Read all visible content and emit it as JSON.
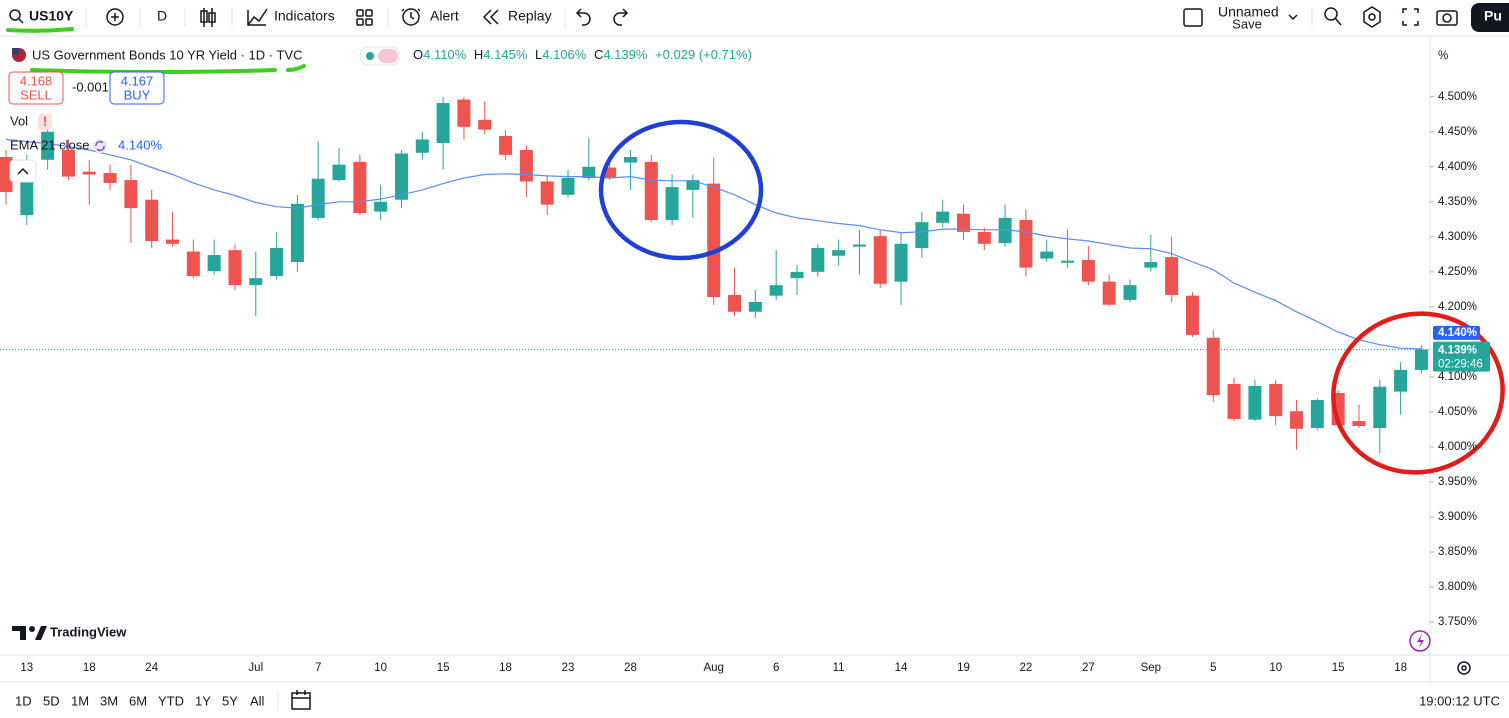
{
  "toolbar": {
    "symbol": "US10Y",
    "interval": "D",
    "indicators": "Indicators",
    "alert": "Alert",
    "replay": "Replay",
    "layout_name": "Unnamed",
    "save": "Save",
    "publish": "Pu"
  },
  "legend": {
    "title": "US Government Bonds 10 YR Yield · 1D · TVC",
    "ohlc": [
      {
        "label": "O",
        "value": "4.110%"
      },
      {
        "label": "H",
        "value": "4.145%"
      },
      {
        "label": "L",
        "value": "4.106%"
      },
      {
        "label": "C",
        "value": "4.139%"
      }
    ],
    "change": "+0.029 (+0.71%)",
    "sell_price": "4.168",
    "sell": "SELL",
    "spread": "-0.001",
    "buy_price": "4.167",
    "buy": "BUY",
    "vol": "Vol",
    "vol_warning": "!",
    "ema_name": "EMA 21 close",
    "ema_value": "4.140%"
  },
  "price_axis": {
    "unit": "%",
    "ema_badge": "4.140%",
    "close_badge": "4.139%",
    "countdown": "02:29:46"
  },
  "brand": "TradingView",
  "bottom_bar": {
    "ranges": [
      "1D",
      "5D",
      "1M",
      "3M",
      "6M",
      "YTD",
      "1Y",
      "5Y",
      "All"
    ],
    "clock": "19:00:12 UTC"
  },
  "chart_data": {
    "type": "candlestick",
    "categories": [
      null,
      "13",
      null,
      null,
      "18",
      null,
      null,
      "24",
      null,
      null,
      null,
      null,
      "Jul",
      null,
      null,
      "7",
      null,
      null,
      "10",
      null,
      null,
      "15",
      null,
      null,
      "18",
      null,
      null,
      "23",
      null,
      null,
      "28",
      null,
      null,
      null,
      "Aug",
      null,
      null,
      "6",
      null,
      null,
      "11",
      null,
      null,
      "14",
      null,
      null,
      "19",
      null,
      null,
      "22",
      null,
      null,
      "27",
      null,
      null,
      "Sep",
      null,
      null,
      "5",
      null,
      null,
      "10",
      null,
      null,
      "15",
      null,
      null,
      "18",
      null
    ],
    "open": [
      4.414,
      4.331,
      4.41,
      4.424,
      4.393,
      4.391,
      4.381,
      4.353,
      4.296,
      4.279,
      4.251,
      4.281,
      4.231,
      4.244,
      4.264,
      4.327,
      4.381,
      4.407,
      4.336,
      4.353,
      4.42,
      4.434,
      4.496,
      4.467,
      4.444,
      4.424,
      4.379,
      4.36,
      4.384,
      4.399,
      4.406,
      4.407,
      4.324,
      4.367,
      4.376,
      4.217,
      4.193,
      4.216,
      4.241,
      4.25,
      4.273,
      4.286,
      4.301,
      4.236,
      4.284,
      4.32,
      4.333,
      4.307,
      4.291,
      4.324,
      4.269,
      4.263,
      4.267,
      4.236,
      4.21,
      4.256,
      4.271,
      4.216,
      4.156,
      4.09,
      4.039,
      4.09,
      4.051,
      4.027,
      4.077,
      4.037,
      4.027,
      4.079,
      4.11
    ],
    "high": [
      4.424,
      4.417,
      4.474,
      4.439,
      4.41,
      4.403,
      4.403,
      4.367,
      4.336,
      4.296,
      4.296,
      4.289,
      4.279,
      4.307,
      4.36,
      4.436,
      4.427,
      4.417,
      4.374,
      4.424,
      4.45,
      4.5,
      4.5,
      4.493,
      4.453,
      4.431,
      4.387,
      4.396,
      4.441,
      4.407,
      4.424,
      4.417,
      4.389,
      4.389,
      4.413,
      4.256,
      4.224,
      4.281,
      4.26,
      4.29,
      4.296,
      4.31,
      4.31,
      4.307,
      4.336,
      4.353,
      4.346,
      4.313,
      4.346,
      4.339,
      4.296,
      4.31,
      4.287,
      4.246,
      4.239,
      4.303,
      4.3,
      4.221,
      4.167,
      4.099,
      4.096,
      4.096,
      4.067,
      4.07,
      4.081,
      4.06,
      4.096,
      4.121,
      4.145
    ],
    "low": [
      4.346,
      4.317,
      4.396,
      4.381,
      4.346,
      4.367,
      4.291,
      4.284,
      4.286,
      4.241,
      4.246,
      4.224,
      4.187,
      4.239,
      4.25,
      4.324,
      4.379,
      4.331,
      4.324,
      4.341,
      4.41,
      4.396,
      4.439,
      4.446,
      4.41,
      4.357,
      4.331,
      4.356,
      4.381,
      4.381,
      4.367,
      4.321,
      4.317,
      4.327,
      4.203,
      4.187,
      4.184,
      4.21,
      4.217,
      4.243,
      4.259,
      4.246,
      4.227,
      4.203,
      4.27,
      4.313,
      4.296,
      4.281,
      4.286,
      4.243,
      4.264,
      4.256,
      4.231,
      4.201,
      4.207,
      4.25,
      4.207,
      4.157,
      4.064,
      4.037,
      4.037,
      4.031,
      3.996,
      4.024,
      4.029,
      4.027,
      3.991,
      4.046,
      4.106
    ],
    "close": [
      4.364,
      4.41,
      4.45,
      4.386,
      4.389,
      4.377,
      4.341,
      4.294,
      4.29,
      4.244,
      4.274,
      4.231,
      4.241,
      4.284,
      4.347,
      4.383,
      4.403,
      4.334,
      4.35,
      4.419,
      4.439,
      4.491,
      4.457,
      4.453,
      4.417,
      4.379,
      4.346,
      4.384,
      4.4,
      4.384,
      4.414,
      4.324,
      4.371,
      4.381,
      4.214,
      4.193,
      4.207,
      4.231,
      4.25,
      4.284,
      4.281,
      4.289,
      4.233,
      4.29,
      4.321,
      4.336,
      4.307,
      4.29,
      4.327,
      4.256,
      4.279,
      4.266,
      4.236,
      4.203,
      4.231,
      4.264,
      4.217,
      4.16,
      4.074,
      4.04,
      4.087,
      4.044,
      4.026,
      4.067,
      4.031,
      4.03,
      4.086,
      4.11,
      4.139
    ],
    "up_color": "#26a69a",
    "down_color": "#ef5350",
    "lines": [
      {
        "name": "EMA 21 close",
        "color": "#5b8def",
        "values": [
          4.439,
          4.436,
          4.433,
          4.429,
          4.424,
          4.417,
          4.41,
          4.399,
          4.389,
          4.377,
          4.367,
          4.359,
          4.349,
          4.343,
          4.341,
          4.346,
          4.35,
          4.35,
          4.354,
          4.36,
          4.367,
          4.376,
          4.384,
          4.389,
          4.39,
          4.389,
          4.387,
          4.386,
          4.386,
          4.384,
          4.386,
          4.381,
          4.38,
          4.38,
          4.371,
          4.36,
          4.346,
          4.334,
          4.327,
          4.323,
          4.319,
          4.316,
          4.31,
          4.306,
          4.307,
          4.311,
          4.311,
          4.31,
          4.31,
          4.307,
          4.301,
          4.297,
          4.294,
          4.289,
          4.284,
          4.283,
          4.276,
          4.264,
          4.253,
          4.234,
          4.221,
          4.209,
          4.193,
          4.179,
          4.164,
          4.153,
          4.146,
          4.141,
          4.14
        ]
      }
    ],
    "ylim": [
      3.703,
      4.581
    ],
    "yticks": [
      {
        "value": 3.75,
        "label": "3.750%"
      },
      {
        "value": 3.8,
        "label": "3.800%"
      },
      {
        "value": 3.85,
        "label": "3.850%"
      },
      {
        "value": 3.9,
        "label": "3.900%"
      },
      {
        "value": 3.95,
        "label": "3.950%"
      },
      {
        "value": 4.0,
        "label": "4.000%"
      },
      {
        "value": 4.05,
        "label": "4.050%"
      },
      {
        "value": 4.1,
        "label": "4.100%"
      },
      {
        "value": 4.2,
        "label": "4.200%"
      },
      {
        "value": 4.25,
        "label": "4.250%"
      },
      {
        "value": 4.3,
        "label": "4.300%"
      },
      {
        "value": 4.35,
        "label": "4.350%"
      },
      {
        "value": 4.4,
        "label": "4.400%"
      },
      {
        "value": 4.45,
        "label": "4.450%"
      },
      {
        "value": 4.5,
        "label": "4.500%"
      }
    ],
    "grid": false
  }
}
